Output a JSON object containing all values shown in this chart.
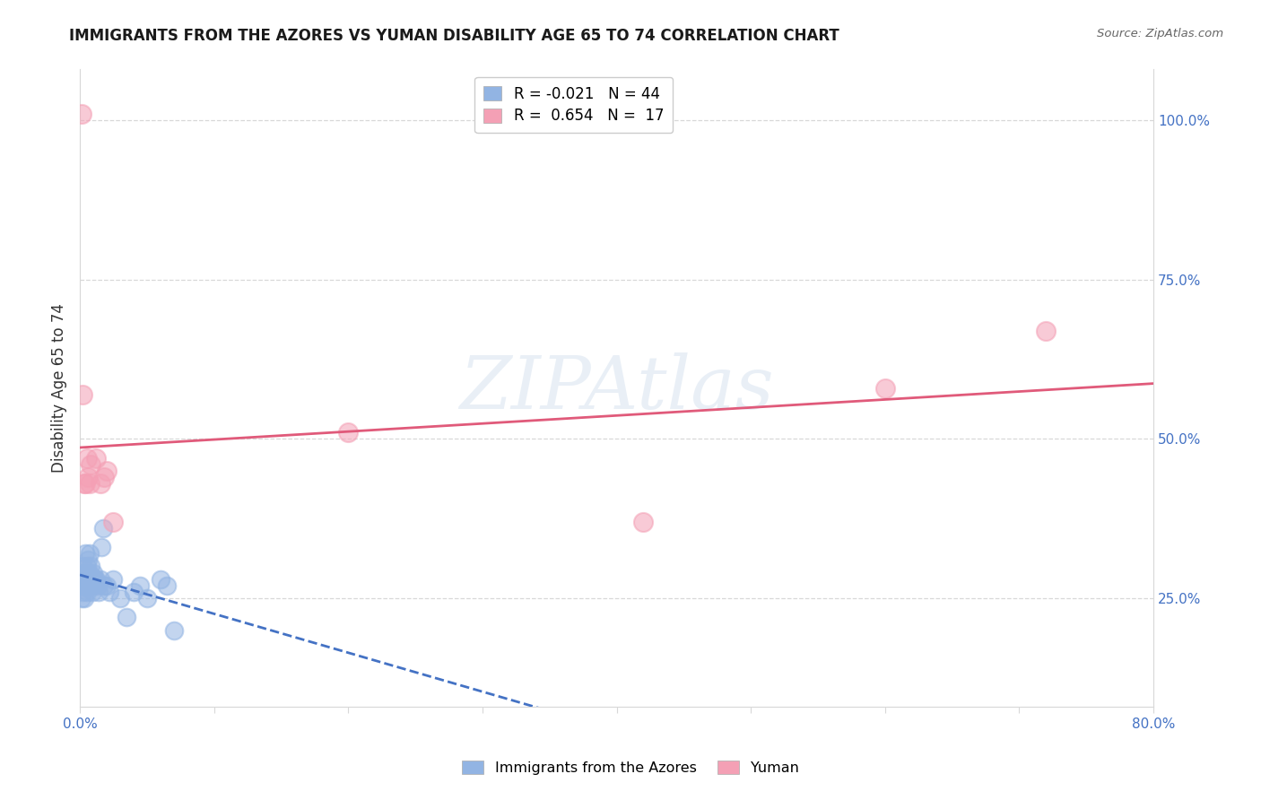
{
  "title": "IMMIGRANTS FROM THE AZORES VS YUMAN DISABILITY AGE 65 TO 74 CORRELATION CHART",
  "source": "Source: ZipAtlas.com",
  "ylabel": "Disability Age 65 to 74",
  "legend_label_blue": "Immigrants from the Azores",
  "legend_label_pink": "Yuman",
  "legend_R_blue": "R = -0.021",
  "legend_N_blue": "N = 44",
  "legend_R_pink": "R =  0.654",
  "legend_N_pink": "N =  17",
  "watermark": "ZIPAtlas",
  "xmin": 0.0,
  "xmax": 0.8,
  "ymin": 0.08,
  "ymax": 1.08,
  "yticks": [
    0.25,
    0.5,
    0.75,
    1.0
  ],
  "ytick_labels": [
    "25.0%",
    "50.0%",
    "75.0%",
    "100.0%"
  ],
  "xticks": [
    0.0,
    0.1,
    0.2,
    0.3,
    0.4,
    0.5,
    0.6,
    0.7,
    0.8
  ],
  "xtick_labels": [
    "0.0%",
    "",
    "",
    "",
    "",
    "",
    "",
    "",
    "80.0%"
  ],
  "blue_x": [
    0.001,
    0.001,
    0.002,
    0.002,
    0.002,
    0.003,
    0.003,
    0.003,
    0.004,
    0.004,
    0.004,
    0.005,
    0.005,
    0.005,
    0.006,
    0.006,
    0.006,
    0.007,
    0.007,
    0.008,
    0.008,
    0.009,
    0.009,
    0.01,
    0.01,
    0.011,
    0.012,
    0.013,
    0.014,
    0.015,
    0.016,
    0.017,
    0.018,
    0.02,
    0.022,
    0.025,
    0.03,
    0.035,
    0.04,
    0.045,
    0.05,
    0.06,
    0.065,
    0.07
  ],
  "blue_y": [
    0.27,
    0.25,
    0.3,
    0.28,
    0.26,
    0.29,
    0.27,
    0.25,
    0.32,
    0.29,
    0.27,
    0.3,
    0.28,
    0.26,
    0.31,
    0.29,
    0.27,
    0.32,
    0.29,
    0.3,
    0.27,
    0.28,
    0.26,
    0.29,
    0.27,
    0.28,
    0.28,
    0.27,
    0.26,
    0.28,
    0.33,
    0.36,
    0.27,
    0.27,
    0.26,
    0.28,
    0.25,
    0.22,
    0.26,
    0.27,
    0.25,
    0.28,
    0.27,
    0.2
  ],
  "pink_x": [
    0.001,
    0.002,
    0.003,
    0.004,
    0.005,
    0.006,
    0.007,
    0.008,
    0.012,
    0.015,
    0.018,
    0.02,
    0.025,
    0.2,
    0.42,
    0.6,
    0.72
  ],
  "pink_y": [
    1.01,
    0.57,
    0.43,
    0.43,
    0.47,
    0.44,
    0.43,
    0.46,
    0.47,
    0.43,
    0.44,
    0.45,
    0.37,
    0.51,
    0.37,
    0.58,
    0.67
  ],
  "blue_color": "#92b4e3",
  "pink_color": "#f4a0b5",
  "blue_line_color": "#4472c4",
  "pink_line_color": "#e05a7a",
  "background_color": "#ffffff",
  "grid_color": "#d8d8d8",
  "title_color": "#1a1a1a",
  "axis_color": "#4472c4"
}
